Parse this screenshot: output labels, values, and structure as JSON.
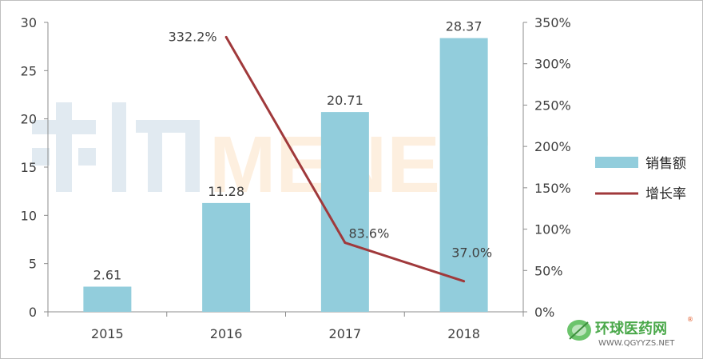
{
  "chart_data": {
    "type": "bar",
    "categories": [
      "2015",
      "2016",
      "2017",
      "2018"
    ],
    "series": [
      {
        "name": "销售额",
        "type": "bar",
        "axis": "left",
        "values": [
          2.61,
          11.28,
          20.71,
          28.37
        ],
        "labels": [
          "2.61",
          "11.28",
          "20.71",
          "28.37"
        ],
        "color": "#92CDDC"
      },
      {
        "name": "增长率",
        "type": "line",
        "axis": "right",
        "values": [
          null,
          332.2,
          83.6,
          37.0
        ],
        "labels": [
          "",
          "332.2%",
          "83.6%",
          "37.0%"
        ],
        "color": "#A0393B"
      }
    ],
    "ylim": [
      0,
      30
    ],
    "y_ticks": [
      "0",
      "5",
      "10",
      "15",
      "20",
      "25",
      "30"
    ],
    "y2lim": [
      0,
      350
    ],
    "y2_ticks": [
      "0%",
      "50%",
      "100%",
      "150%",
      "200%",
      "250%",
      "300%",
      "350%"
    ],
    "grid": false,
    "legend_position": "right"
  },
  "watermark": {
    "text": "MENET",
    "color_left": "#c9d9e6",
    "color_right": "#fde3c6"
  },
  "logo": {
    "cn": "环球医药网",
    "en": "WWW.QGYYZS.NET",
    "reg": "®"
  }
}
